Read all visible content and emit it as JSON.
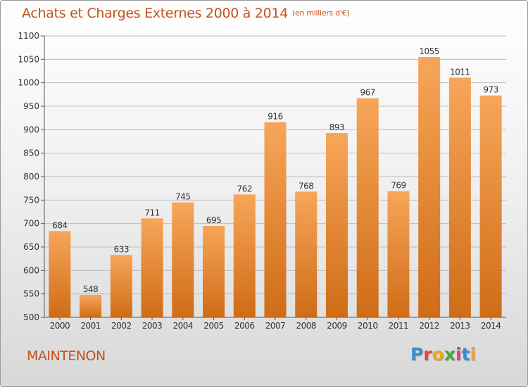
{
  "title": "Achats et Charges Externes 2000 à 2014",
  "unit_label": "(en milliers d'€)",
  "commune": "MAINTENON",
  "logo": {
    "text": "Proxiti",
    "colors": [
      "#3a8fd0",
      "#e2462e",
      "#f3a21b",
      "#4aa63c",
      "#e23c8c",
      "#3a8fd0",
      "#f3a21b"
    ]
  },
  "colors": {
    "accent": "#c4511b",
    "bar_top": "#f7a659",
    "bar_bottom": "#cf6c17",
    "grid": "#bdbdbd"
  },
  "chart_data": {
    "type": "bar",
    "categories": [
      "2000",
      "2001",
      "2002",
      "2003",
      "2004",
      "2005",
      "2006",
      "2007",
      "2008",
      "2009",
      "2010",
      "2011",
      "2012",
      "2013",
      "2014"
    ],
    "values": [
      684,
      548,
      633,
      711,
      745,
      695,
      762,
      916,
      768,
      893,
      967,
      769,
      1055,
      1011,
      973
    ],
    "data_labels": [
      "684",
      "548",
      "633",
      "711",
      "745",
      "695",
      "762",
      "916",
      "768",
      "893",
      "967",
      "769",
      "1055",
      "1011",
      "973"
    ],
    "ylim": [
      500,
      1100
    ],
    "yticks": [
      500,
      550,
      600,
      650,
      700,
      750,
      800,
      850,
      900,
      950,
      1000,
      1050,
      1100
    ],
    "grid": true,
    "xlabel": "",
    "ylabel": ""
  }
}
